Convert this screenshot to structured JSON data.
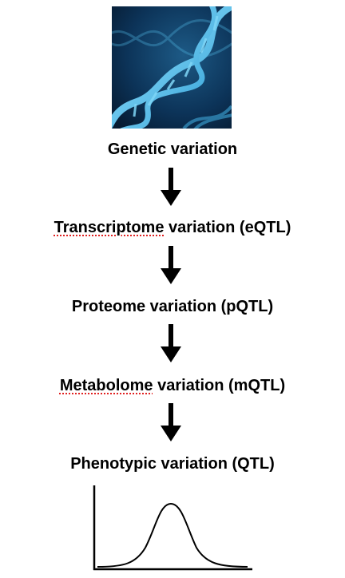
{
  "stages": [
    {
      "name": "stage-genetic",
      "pre": "",
      "spell": "",
      "post": "Genetic variation"
    },
    {
      "name": "stage-transcriptome",
      "pre": "",
      "spell": "Transcriptome",
      "post": " variation (eQTL)"
    },
    {
      "name": "stage-proteome",
      "pre": "",
      "spell": "",
      "post": "Proteome variation (pQTL)"
    },
    {
      "name": "stage-metabolome",
      "pre": "",
      "spell": "Metabolome",
      "post": " variation (mQTL)"
    },
    {
      "name": "stage-phenotypic",
      "pre": "",
      "spell": "",
      "post": "Phenotypic variation (QTL)"
    }
  ],
  "icons": {
    "image": "dna-helix-image",
    "arrow": "down-arrow-icon",
    "curve": "bell-curve-icon"
  },
  "colors": {
    "text": "#000000",
    "spellcheck_underline": "#e02020",
    "dna_background": "#0a2a4a",
    "dna_strand": "#5ec8f0"
  }
}
